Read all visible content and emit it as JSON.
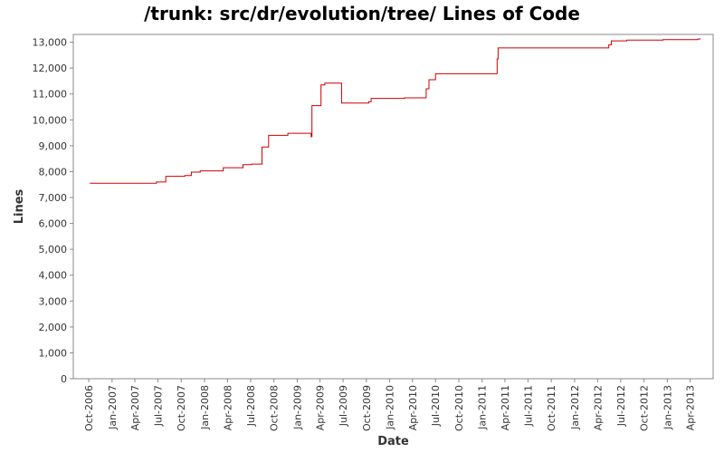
{
  "chart_data": {
    "type": "line",
    "title": "/trunk: src/dr/evolution/tree/ Lines of Code",
    "xlabel": "Date",
    "ylabel": "Lines",
    "xlim": [
      "2006-08-01",
      "2013-07-01"
    ],
    "ylim": [
      0,
      13300
    ],
    "x_tick_labels": [
      "Oct-2006",
      "Jan-2007",
      "Apr-2007",
      "Jul-2007",
      "Oct-2007",
      "Jan-2008",
      "Apr-2008",
      "Jul-2008",
      "Oct-2008",
      "Jan-2009",
      "Apr-2009",
      "Jul-2009",
      "Oct-2009",
      "Jan-2010",
      "Apr-2010",
      "Jul-2010",
      "Oct-2010",
      "Jan-2011",
      "Apr-2011",
      "Jul-2011",
      "Oct-2011",
      "Jan-2012",
      "Apr-2012",
      "Jul-2012",
      "Oct-2012",
      "Jan-2013",
      "Apr-2013"
    ],
    "x_tick_dates": [
      "2006-10-01",
      "2007-01-01",
      "2007-04-01",
      "2007-07-01",
      "2007-10-01",
      "2008-01-01",
      "2008-04-01",
      "2008-07-01",
      "2008-10-01",
      "2009-01-01",
      "2009-04-01",
      "2009-07-01",
      "2009-10-01",
      "2010-01-01",
      "2010-04-01",
      "2010-07-01",
      "2010-10-01",
      "2011-01-01",
      "2011-04-01",
      "2011-07-01",
      "2011-10-01",
      "2012-01-01",
      "2012-04-01",
      "2012-07-01",
      "2012-10-01",
      "2013-01-01",
      "2013-04-01"
    ],
    "y_ticks": [
      0,
      1000,
      2000,
      3000,
      4000,
      5000,
      6000,
      7000,
      8000,
      9000,
      10000,
      11000,
      12000,
      13000
    ],
    "y_tick_labels": [
      "0",
      "1,000",
      "2,000",
      "3,000",
      "4,000",
      "5,000",
      "6,000",
      "7,000",
      "8,000",
      "9,000",
      "10,000",
      "11,000",
      "12,000",
      "13,000"
    ],
    "grid": false,
    "series": [
      {
        "name": "",
        "color": "#cc0000",
        "step": true,
        "points": [
          [
            "2006-10-05",
            7550
          ],
          [
            "2007-06-25",
            7600
          ],
          [
            "2007-08-01",
            7820
          ],
          [
            "2007-10-15",
            7850
          ],
          [
            "2007-11-10",
            7980
          ],
          [
            "2007-12-15",
            8030
          ],
          [
            "2008-03-15",
            8150
          ],
          [
            "2008-06-01",
            8270
          ],
          [
            "2008-07-05",
            8290
          ],
          [
            "2008-08-15",
            8950
          ],
          [
            "2008-09-10",
            9400
          ],
          [
            "2008-11-25",
            9480
          ],
          [
            "2009-02-25",
            9350
          ],
          [
            "2009-02-28",
            10550
          ],
          [
            "2009-04-05",
            11350
          ],
          [
            "2009-04-20",
            11420
          ],
          [
            "2009-06-25",
            10650
          ],
          [
            "2009-10-10",
            10700
          ],
          [
            "2009-10-20",
            10830
          ],
          [
            "2010-03-01",
            10850
          ],
          [
            "2010-05-25",
            11200
          ],
          [
            "2010-06-05",
            11550
          ],
          [
            "2010-07-01",
            11780
          ],
          [
            "2011-03-01",
            12350
          ],
          [
            "2011-03-05",
            12780
          ],
          [
            "2012-05-15",
            12900
          ],
          [
            "2012-05-25",
            13050
          ],
          [
            "2012-07-25",
            13080
          ],
          [
            "2012-12-15",
            13100
          ],
          [
            "2013-05-01",
            13120
          ],
          [
            "2013-05-10",
            13150
          ]
        ]
      }
    ]
  }
}
